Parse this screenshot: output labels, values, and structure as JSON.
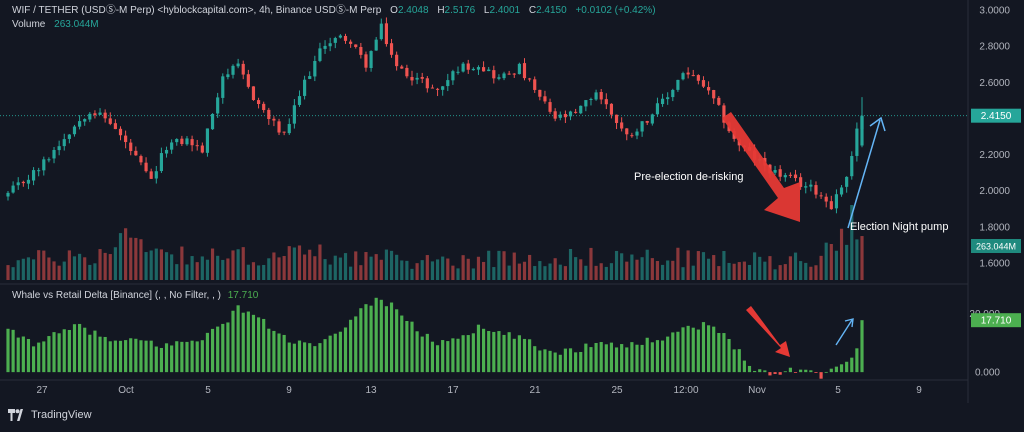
{
  "header": {
    "symbol": "WIF / TETHER (USDⓈ-M Perp) <hyblockcapital.com>, 4h, Binance USDⓈ-M Perp",
    "o_label": "O",
    "o_value": "2.4048",
    "h_label": "H",
    "h_value": "2.5176",
    "l_label": "L",
    "l_value": "2.4001",
    "c_label": "C",
    "c_value": "2.4150",
    "change": "+0.0102 (+0.42%)",
    "volume_label": "Volume",
    "volume_value": "263.044M"
  },
  "indicator": {
    "name": "Whale vs Retail Delta [Binance] (, , No Filter, , )",
    "value": "17.710"
  },
  "footer": {
    "brand": "TradingView"
  },
  "colors": {
    "background": "#131722",
    "up": "#26a69a",
    "down": "#ef5350",
    "delta_up": "#4caf50",
    "delta_down": "#ef5350",
    "arrow_red": "#e53935",
    "arrow_blue": "#64b5f6"
  },
  "chart_data": [
    {
      "type": "candlestick",
      "title": "WIF / TETHER (USDⓈ-M Perp), 4h",
      "ylim": [
        1.5,
        3.0
      ],
      "y_ticks": [
        "3.0000",
        "2.8000",
        "2.6000",
        "2.4000",
        "2.2000",
        "2.0000",
        "1.8000",
        "1.6000"
      ],
      "last_price_label": "2.4150",
      "x_ticks": [
        "27",
        "Oct",
        "5",
        "9",
        "13",
        "17",
        "21",
        "25",
        "12:00",
        "Nov",
        "5",
        "9"
      ],
      "close_path": [
        [
          0,
          1.98
        ],
        [
          6,
          2.12
        ],
        [
          12,
          2.33
        ],
        [
          16,
          2.45
        ],
        [
          20,
          2.38
        ],
        [
          24,
          2.22
        ],
        [
          28,
          2.05
        ],
        [
          31,
          2.25
        ],
        [
          35,
          2.28
        ],
        [
          38,
          2.22
        ],
        [
          42,
          2.64
        ],
        [
          45,
          2.68
        ],
        [
          48,
          2.52
        ],
        [
          51,
          2.4
        ],
        [
          54,
          2.3
        ],
        [
          58,
          2.6
        ],
        [
          62,
          2.82
        ],
        [
          66,
          2.85
        ],
        [
          70,
          2.7
        ],
        [
          73,
          2.9
        ],
        [
          76,
          2.68
        ],
        [
          80,
          2.62
        ],
        [
          84,
          2.55
        ],
        [
          88,
          2.68
        ],
        [
          92,
          2.7
        ],
        [
          96,
          2.62
        ],
        [
          100,
          2.68
        ],
        [
          103,
          2.55
        ],
        [
          107,
          2.4
        ],
        [
          111,
          2.42
        ],
        [
          115,
          2.55
        ],
        [
          118,
          2.43
        ],
        [
          121,
          2.3
        ],
        [
          124,
          2.37
        ],
        [
          126,
          2.43
        ],
        [
          129,
          2.52
        ],
        [
          132,
          2.66
        ],
        [
          136,
          2.58
        ],
        [
          139,
          2.45
        ],
        [
          142,
          2.28
        ],
        [
          146,
          2.18
        ],
        [
          150,
          2.1
        ],
        [
          154,
          2.05
        ],
        [
          158,
          2.0
        ],
        [
          161,
          1.92
        ],
        [
          164,
          2.08
        ],
        [
          166,
          2.33
        ],
        [
          167,
          2.415
        ]
      ],
      "annotations": [
        "Pre-election de-risking",
        "Election Night pump"
      ]
    },
    {
      "type": "bar",
      "title": "Volume",
      "last_value_label": "263.044M",
      "volume_path": [
        [
          0,
          0.25
        ],
        [
          20,
          0.35
        ],
        [
          25,
          0.75
        ],
        [
          28,
          0.4
        ],
        [
          40,
          0.3
        ],
        [
          60,
          0.35
        ],
        [
          80,
          0.25
        ],
        [
          100,
          0.3
        ],
        [
          130,
          0.3
        ],
        [
          150,
          0.25
        ],
        [
          160,
          0.35
        ],
        [
          166,
          0.95
        ],
        [
          167,
          0.85
        ]
      ]
    },
    {
      "type": "bar",
      "title": "Whale vs Retail Delta [Binance]",
      "y_ticks": [
        "0.000",
        "20.000"
      ],
      "ylim": [
        -2,
        28
      ],
      "last_value_label": "17.710",
      "delta_path": [
        [
          0,
          14
        ],
        [
          5,
          10
        ],
        [
          10,
          13
        ],
        [
          14,
          16
        ],
        [
          18,
          12
        ],
        [
          22,
          10
        ],
        [
          26,
          11
        ],
        [
          30,
          9
        ],
        [
          34,
          10
        ],
        [
          38,
          12
        ],
        [
          42,
          16
        ],
        [
          45,
          22
        ],
        [
          48,
          20
        ],
        [
          52,
          14
        ],
        [
          56,
          10
        ],
        [
          60,
          9
        ],
        [
          64,
          12
        ],
        [
          68,
          20
        ],
        [
          72,
          25
        ],
        [
          76,
          22
        ],
        [
          80,
          14
        ],
        [
          84,
          10
        ],
        [
          88,
          12
        ],
        [
          92,
          15
        ],
        [
          96,
          13
        ],
        [
          100,
          12
        ],
        [
          104,
          8
        ],
        [
          108,
          7
        ],
        [
          112,
          8
        ],
        [
          116,
          11
        ],
        [
          120,
          9
        ],
        [
          124,
          10
        ],
        [
          128,
          12
        ],
        [
          132,
          15
        ],
        [
          136,
          16
        ],
        [
          140,
          13
        ],
        [
          143,
          7
        ],
        [
          146,
          1.5
        ],
        [
          150,
          -1.5
        ],
        [
          152,
          1
        ],
        [
          156,
          0.8
        ],
        [
          159,
          -1
        ],
        [
          161,
          1.5
        ],
        [
          164,
          3
        ],
        [
          166,
          9
        ],
        [
          167,
          17.71
        ]
      ],
      "annotations": [
        "red-arrow-down",
        "blue-arrow-up"
      ]
    }
  ]
}
